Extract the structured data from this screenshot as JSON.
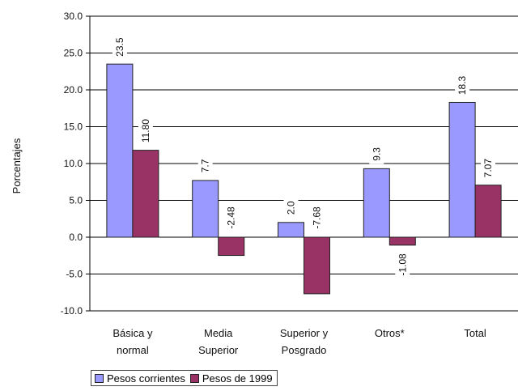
{
  "chart_data": {
    "type": "bar",
    "ylabel": "Porcentajes",
    "ylim": [
      -10,
      30
    ],
    "yticks": [
      "30.0",
      "25.0",
      "20.0",
      "15.0",
      "10.0",
      "5.0",
      "0.0",
      "-5.0",
      "-10.0"
    ],
    "grid": true,
    "legend_position": "bottom",
    "categories": [
      [
        "Básica y",
        "normal"
      ],
      [
        "Media",
        "Superior"
      ],
      [
        "Superior y",
        "Posgrado"
      ],
      [
        "Otros*"
      ],
      [
        "Total"
      ]
    ],
    "series": [
      {
        "name": "Pesos corrientes",
        "color": "#9999ff",
        "values": [
          23.5,
          7.7,
          2.0,
          9.3,
          18.3
        ],
        "labels": [
          "23.5",
          "7.7",
          "2.0",
          "9.3",
          "18.3"
        ]
      },
      {
        "name": "Pesos de 1999",
        "color": "#993366",
        "values": [
          11.8,
          -2.48,
          -7.68,
          -1.08,
          7.07
        ],
        "labels": [
          "11.80",
          "-2.48",
          "-7.68",
          "-1.08",
          "7.07"
        ]
      }
    ]
  }
}
